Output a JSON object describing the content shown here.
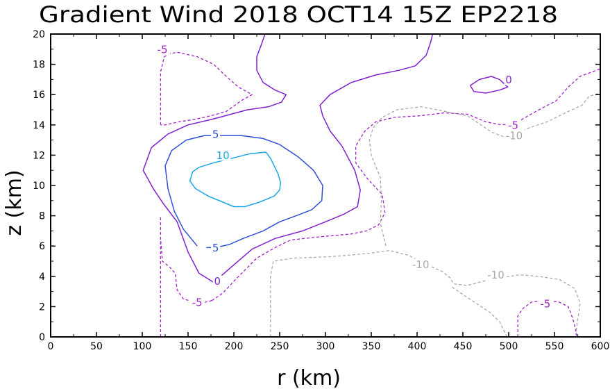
{
  "chart_data": {
    "type": "contour",
    "title": "Gradient Wind 2018 OCT14 15Z   EP2218",
    "xlabel": "r (km)",
    "ylabel": "z (km)",
    "xlim": [
      0,
      600
    ],
    "ylim": [
      0,
      20
    ],
    "xticks": [
      0,
      50,
      100,
      150,
      200,
      250,
      300,
      350,
      400,
      450,
      500,
      550,
      600
    ],
    "yticks": [
      0,
      2,
      4,
      6,
      8,
      10,
      12,
      14,
      16,
      18,
      20
    ],
    "colors": {
      "c10": "#1aa6e6",
      "c5": "#2e4fd8",
      "c0": "#8020d0",
      "cm5": "#a020c8",
      "cm10": "#a8a8a8"
    },
    "contours": [
      {
        "level": 10,
        "style": "solid",
        "color": "#1aa6e6",
        "label": "10",
        "paths": [
          [
            [
              235,
              12.2
            ],
            [
              218,
              12.1
            ],
            [
              198,
              11.8
            ],
            [
              178,
              11.5
            ],
            [
              162,
              11.2
            ],
            [
              155,
              10.9
            ],
            [
              152,
              10.3
            ],
            [
              158,
              9.8
            ],
            [
              172,
              9.3
            ],
            [
              188,
              8.9
            ],
            [
              200,
              8.6
            ],
            [
              212,
              8.6
            ],
            [
              228,
              8.9
            ],
            [
              244,
              9.3
            ],
            [
              250,
              9.7
            ],
            [
              251,
              10.2
            ],
            [
              248,
              10.8
            ],
            [
              240,
              11.8
            ],
            [
              235,
              12.2
            ]
          ]
        ],
        "labels": [
          {
            "x": 188,
            "y": 12.0
          }
        ]
      },
      {
        "level": 5,
        "style": "solid",
        "color": "#2e4fd8",
        "label": "5",
        "paths": [
          [
            [
              160,
              6.0
            ],
            [
              145,
              7.1
            ],
            [
              135,
              8.3
            ],
            [
              128,
              9.8
            ],
            [
              125,
              11.3
            ],
            [
              132,
              12.3
            ],
            [
              148,
              13.0
            ],
            [
              168,
              13.3
            ],
            [
              188,
              13.3
            ],
            [
              208,
              13.3
            ],
            [
              232,
              13.1
            ],
            [
              250,
              12.7
            ],
            [
              270,
              11.9
            ],
            [
              287,
              11.0
            ],
            [
              297,
              10.0
            ],
            [
              296,
              9.0
            ],
            [
              285,
              8.4
            ],
            [
              268,
              8.0
            ],
            [
              250,
              7.6
            ],
            [
              232,
              7.0
            ],
            [
              210,
              6.5
            ],
            [
              195,
              6.1
            ],
            [
              180,
              5.9
            ],
            [
              170,
              5.9
            ]
          ]
        ],
        "labels": [
          {
            "x": 180,
            "y": 13.4
          },
          {
            "x": 180,
            "y": 5.9
          }
        ]
      },
      {
        "level": 0,
        "style": "solid",
        "color": "#8020d0",
        "label": "0",
        "paths": [
          [
            [
              178,
              3.6
            ],
            [
              162,
              4.2
            ],
            [
              150,
              5.6
            ],
            [
              138,
              7.6
            ],
            [
              123,
              8.8
            ],
            [
              112,
              9.8
            ],
            [
              101,
              11.0
            ],
            [
              110,
              12.5
            ],
            [
              128,
              13.4
            ],
            [
              150,
              14.0
            ],
            [
              178,
              14.4
            ],
            [
              215,
              15.0
            ],
            [
              238,
              15.2
            ],
            [
              252,
              15.5
            ],
            [
              257,
              16.0
            ],
            [
              245,
              16.3
            ],
            [
              232,
              16.8
            ],
            [
              225,
              17.6
            ],
            [
              225,
              18.5
            ],
            [
              230,
              19.3
            ],
            [
              234,
              20.0
            ]
          ],
          [
            [
              178,
              3.6
            ],
            [
              197,
              4.6
            ],
            [
              220,
              5.8
            ],
            [
              245,
              6.5
            ],
            [
              275,
              7.0
            ],
            [
              300,
              7.6
            ],
            [
              320,
              8.1
            ],
            [
              335,
              8.6
            ],
            [
              338,
              9.7
            ],
            [
              332,
              11.0
            ],
            [
              318,
              12.6
            ],
            [
              305,
              13.6
            ],
            [
              297,
              14.6
            ],
            [
              294,
              15.3
            ],
            [
              305,
              16.0
            ],
            [
              328,
              16.8
            ],
            [
              355,
              17.3
            ],
            [
              380,
              17.6
            ],
            [
              398,
              17.9
            ],
            [
              410,
              18.6
            ],
            [
              415,
              19.5
            ],
            [
              417,
              20.0
            ]
          ],
          [
            [
              458,
              16.6
            ],
            [
              468,
              17.0
            ],
            [
              481,
              17.2
            ],
            [
              490,
              17.0
            ],
            [
              499,
              16.5
            ],
            [
              490,
              16.3
            ],
            [
              475,
              16.1
            ],
            [
              462,
              16.2
            ],
            [
              458,
              16.6
            ]
          ]
        ],
        "labels": [
          {
            "x": 182,
            "y": 3.7
          },
          {
            "x": 500,
            "y": 17.0
          }
        ]
      },
      {
        "level": -5,
        "style": "dashed",
        "color": "#a020c8",
        "label": "-5",
        "paths": [
          [
            [
              120,
              0
            ],
            [
              120,
              8.0
            ]
          ],
          [
            [
              176,
              2.4
            ],
            [
              163,
              2.2
            ],
            [
              145,
              2.5
            ],
            [
              138,
              3.1
            ],
            [
              136,
              4.2
            ],
            [
              130,
              4.6
            ],
            [
              122,
              5.0
            ],
            [
              120,
              6.5
            ]
          ],
          [
            [
              176,
              2.4
            ],
            [
              188,
              2.9
            ],
            [
              202,
              3.8
            ],
            [
              225,
              5.2
            ],
            [
              245,
              5.9
            ],
            [
              262,
              6.4
            ],
            [
              292,
              6.6
            ],
            [
              328,
              6.8
            ],
            [
              345,
              7.0
            ],
            [
              358,
              7.4
            ],
            [
              365,
              8.2
            ],
            [
              362,
              9.4
            ],
            [
              345,
              10.5
            ],
            [
              333,
              11.5
            ],
            [
              333,
              12.6
            ],
            [
              343,
              13.6
            ],
            [
              355,
              14.2
            ],
            [
              375,
              14.5
            ],
            [
              403,
              14.6
            ],
            [
              430,
              14.8
            ],
            [
              455,
              14.7
            ],
            [
              475,
              14.2
            ],
            [
              492,
              14.0
            ],
            [
              507,
              14.1
            ],
            [
              530,
              14.9
            ],
            [
              552,
              15.6
            ],
            [
              565,
              16.5
            ],
            [
              578,
              17.2
            ],
            [
              600,
              17.7
            ]
          ],
          [
            [
              120,
              14.0
            ],
            [
              120,
              16.0
            ],
            [
              120,
              17.5
            ],
            [
              124,
              18.5
            ],
            [
              130,
              18.7
            ],
            [
              138,
              18.8
            ],
            [
              160,
              18.5
            ],
            [
              178,
              18.0
            ],
            [
              190,
              17.3
            ],
            [
              205,
              16.5
            ],
            [
              220,
              16.0
            ],
            [
              208,
              15.6
            ],
            [
              192,
              14.9
            ],
            [
              175,
              14.6
            ],
            [
              160,
              14.4
            ],
            [
              140,
              14.2
            ],
            [
              125,
              14.0
            ],
            [
              120,
              14.0
            ]
          ],
          [
            [
              510,
              0
            ],
            [
              510,
              1.4
            ],
            [
              516,
              1.9
            ],
            [
              525,
              2.3
            ],
            [
              540,
              2.4
            ],
            [
              555,
              2.3
            ],
            [
              565,
              2.0
            ],
            [
              570,
              1.2
            ],
            [
              575,
              0
            ]
          ]
        ],
        "labels": [
          {
            "x": 122,
            "y": 19.0
          },
          {
            "x": 160,
            "y": 2.3
          },
          {
            "x": 505,
            "y": 14.0
          },
          {
            "x": 540,
            "y": 2.2
          }
        ]
      },
      {
        "level": -10,
        "style": "dashed",
        "color": "#a8a8a8",
        "label": "-10",
        "paths": [
          [
            [
              240,
              0
            ],
            [
              240,
              2.0
            ],
            [
              240,
              4.0
            ],
            [
              243,
              5.0
            ],
            [
              265,
              5.2
            ],
            [
              305,
              5.3
            ],
            [
              345,
              5.5
            ],
            [
              370,
              5.7
            ],
            [
              390,
              5.4
            ],
            [
              410,
              4.8
            ],
            [
              428,
              4.3
            ],
            [
              436,
              3.9
            ],
            [
              440,
              3.5
            ],
            [
              455,
              3.4
            ],
            [
              480,
              3.8
            ],
            [
              512,
              4.1
            ],
            [
              532,
              4.0
            ],
            [
              555,
              3.8
            ],
            [
              572,
              3.2
            ],
            [
              578,
              2.2
            ],
            [
              575,
              1.0
            ],
            [
              573,
              0
            ]
          ],
          [
            [
              498,
              0
            ],
            [
              495,
              0.4
            ],
            [
              490,
              1.0
            ],
            [
              480,
              1.6
            ],
            [
              465,
              2.2
            ],
            [
              450,
              2.8
            ],
            [
              438,
              3.3
            ]
          ],
          [
            [
              366,
              6.0
            ],
            [
              360,
              7.5
            ],
            [
              361,
              9.0
            ],
            [
              360,
              10.5
            ],
            [
              350,
              12.0
            ],
            [
              348,
              13.0
            ],
            [
              352,
              13.8
            ],
            [
              362,
              14.5
            ],
            [
              378,
              15.0
            ],
            [
              404,
              15.2
            ],
            [
              430,
              14.9
            ],
            [
              455,
              14.6
            ],
            [
              482,
              13.5
            ],
            [
              500,
              13.1
            ],
            [
              510,
              13.4
            ],
            [
              522,
              13.8
            ],
            [
              542,
              14.2
            ],
            [
              562,
              14.8
            ],
            [
              580,
              15.3
            ],
            [
              588,
              15.9
            ],
            [
              600,
              16.1
            ]
          ]
        ],
        "labels": [
          {
            "x": 404,
            "y": 4.8
          },
          {
            "x": 486,
            "y": 4.1
          },
          {
            "x": 506,
            "y": 13.3
          }
        ]
      }
    ]
  }
}
